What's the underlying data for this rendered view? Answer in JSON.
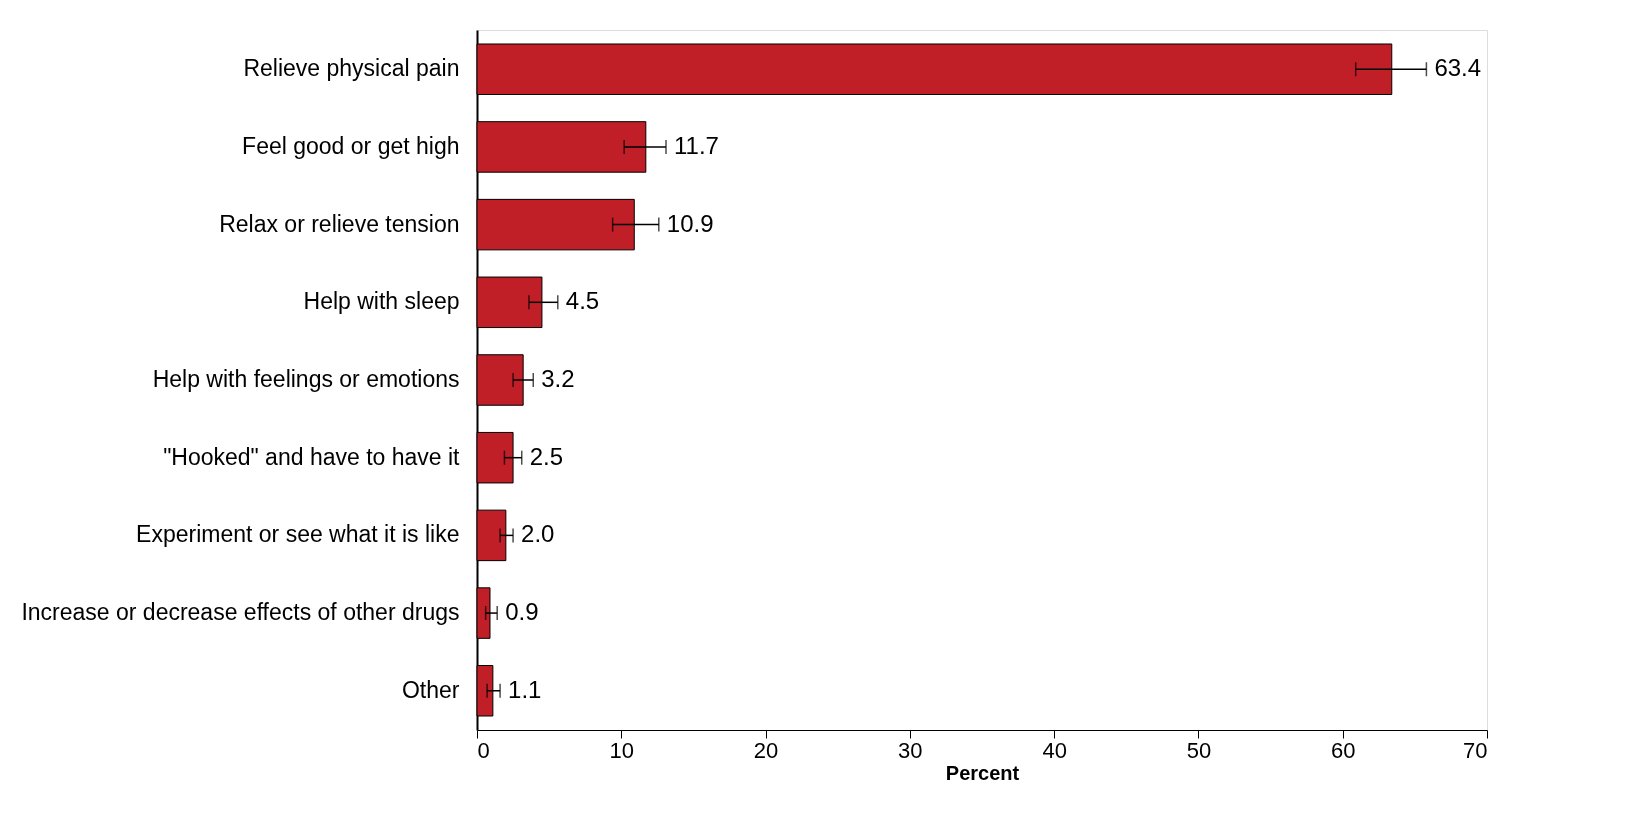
{
  "chart_data": {
    "type": "bar",
    "orientation": "horizontal",
    "xlabel": "Percent",
    "categories": [
      "Relieve physical pain",
      "Feel good or get high",
      "Relax or relieve tension",
      "Help with sleep",
      "Help with feelings or emotions",
      "\"Hooked\" and have to have it",
      "Experiment or see what it is like",
      "Increase or decrease effects of other drugs",
      "Other"
    ],
    "values": [
      63.4,
      11.7,
      10.9,
      4.5,
      3.2,
      2.5,
      2.0,
      0.9,
      1.1
    ],
    "color": "#c01f28",
    "errors": [
      [
        60.9,
        65.8
      ],
      [
        10.2,
        13.1
      ],
      [
        9.4,
        12.6
      ],
      [
        3.6,
        5.6
      ],
      [
        2.5,
        3.9
      ],
      [
        1.9,
        3.1
      ],
      [
        1.6,
        2.5
      ],
      [
        0.6,
        1.4
      ],
      [
        0.7,
        1.6
      ]
    ],
    "value_labels": [
      "63.4",
      "11.7",
      "10.9",
      "4.5",
      "3.2",
      "2.5",
      "2.0",
      "0.9",
      "1.1"
    ],
    "xlim": [
      0,
      70
    ],
    "xticks": [
      0,
      10,
      20,
      30,
      40,
      50,
      60,
      70
    ],
    "grid": false
  }
}
